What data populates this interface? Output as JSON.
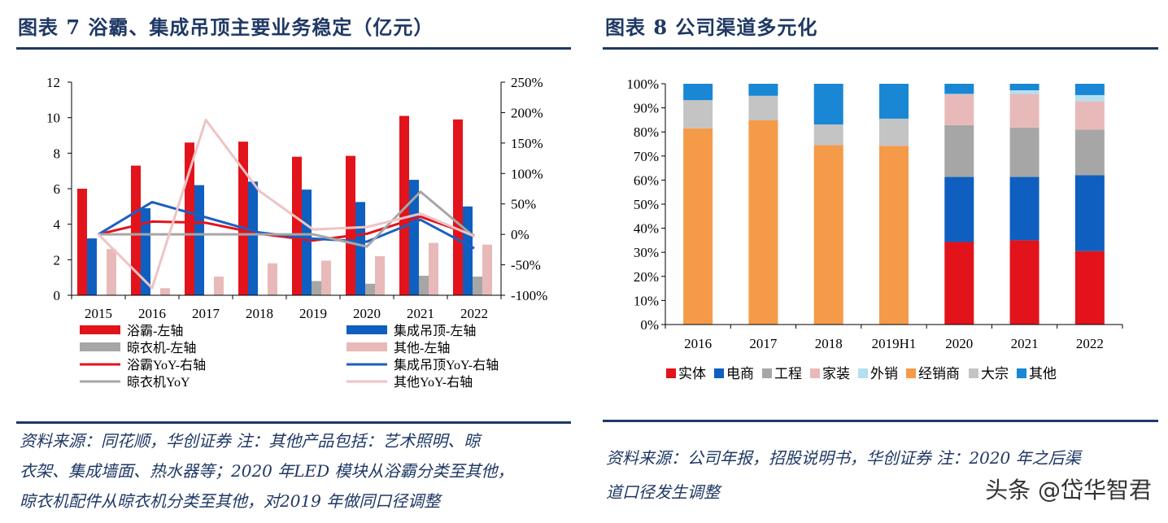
{
  "left": {
    "title": "图表 7   浴霸、集成吊顶主要业务稳定（亿元）",
    "source_lines": [
      "资料来源：同花顺，华创证券 注：其他产品包括：艺术照明、晾",
      "衣架、集成墙面、热水器等；2020 年LED 模块从浴霸分类至其他，",
      "晾衣机配件从晾衣机分类至其他，对2019 年做同口径调整"
    ]
  },
  "right": {
    "title": "图表 8   公司渠道多元化",
    "source_lines": [
      "资料来源：公司年报，招股说明书，华创证券 注：2020 年之后渠",
      "道口径发生调整"
    ]
  },
  "watermark": "头条 @岱华智君",
  "colors": {
    "title": "#1f3864",
    "red": "#e3131b",
    "blue": "#0e5fc0",
    "gray": "#a6a6a6",
    "pink": "#e8b9b9",
    "lightblue": "#b3dff0",
    "orange": "#f59a48",
    "lightgray": "#c4c4c4",
    "sky": "#1987d4",
    "blueLine": "#1c5fc0",
    "pinkLine": "#efc3c3"
  },
  "chart_data": [
    {
      "type": "bar",
      "categories": [
        "2015",
        "2016",
        "2017",
        "2018",
        "2019",
        "2020",
        "2021",
        "2022"
      ],
      "y_left": {
        "ylim": [
          0,
          12
        ],
        "ticks": [
          "0",
          "2",
          "4",
          "6",
          "8",
          "10",
          "12"
        ]
      },
      "y_right": {
        "ylim": [
          -100,
          250
        ],
        "ticks": [
          "-100%",
          "-50%",
          "0%",
          "50%",
          "100%",
          "150%",
          "200%",
          "250%"
        ]
      },
      "series": [
        {
          "name": "浴霸-左轴",
          "kind": "bar",
          "axis": "left",
          "color": "#e3131b",
          "values": [
            6.0,
            7.3,
            8.6,
            8.65,
            7.8,
            7.85,
            10.1,
            9.9
          ]
        },
        {
          "name": "集成吊顶-左轴",
          "kind": "bar",
          "axis": "left",
          "color": "#0e5fc0",
          "values": [
            3.2,
            4.9,
            6.2,
            6.4,
            5.95,
            5.25,
            6.5,
            5.0
          ]
        },
        {
          "name": "晾衣机-左轴",
          "kind": "bar",
          "axis": "left",
          "color": "#a6a6a6",
          "values": [
            0,
            0,
            0,
            0,
            0.8,
            0.65,
            1.1,
            1.05
          ]
        },
        {
          "name": "其他-左轴",
          "kind": "bar",
          "axis": "left",
          "color": "#e8b9b9",
          "values": [
            2.6,
            0.4,
            1.05,
            1.8,
            1.95,
            2.2,
            2.95,
            2.85
          ]
        },
        {
          "name": "浴霸YoY-右轴",
          "kind": "line",
          "axis": "right",
          "color": "#e3131b",
          "values": [
            0,
            21,
            19,
            1,
            -10,
            1,
            29,
            -2
          ]
        },
        {
          "name": "集成吊顶YoY-右轴",
          "kind": "line",
          "axis": "right",
          "color": "#1c5fc0",
          "values": [
            0,
            53,
            28,
            3,
            -7,
            -12,
            24,
            -23
          ]
        },
        {
          "name": "晾衣机YoY",
          "kind": "line",
          "axis": "right",
          "color": "#a6a6a6",
          "values": [
            0,
            0,
            0,
            0,
            0,
            -20,
            70,
            -4
          ]
        },
        {
          "name": "其他YoY-右轴",
          "kind": "line",
          "axis": "right",
          "color": "#efc3c3",
          "values": [
            0,
            -88,
            188,
            71,
            8,
            12,
            34,
            -3
          ]
        }
      ],
      "legend_rows": [
        [
          "浴霸-左轴",
          "集成吊顶-左轴"
        ],
        [
          "晾衣机-左轴",
          "其他-左轴"
        ],
        [
          "浴霸YoY-右轴",
          "集成吊顶YoY-右轴"
        ],
        [
          "晾衣机YoY",
          "其他YoY-右轴"
        ]
      ]
    },
    {
      "type": "bar",
      "stacked": true,
      "categories": [
        "2016",
        "2017",
        "2018",
        "2019H1",
        "2020",
        "2021",
        "2022"
      ],
      "ylim": [
        0,
        100
      ],
      "y_ticks": [
        "0%",
        "10%",
        "20%",
        "30%",
        "40%",
        "50%",
        "60%",
        "70%",
        "80%",
        "90%",
        "100%"
      ],
      "series": [
        {
          "name": "实体",
          "color": "#e3131b",
          "values": [
            0,
            0,
            0,
            0,
            34.3,
            35,
            30.5
          ]
        },
        {
          "name": "电商",
          "color": "#0e5fc0",
          "values": [
            0,
            0,
            0,
            0,
            27,
            26.3,
            31.5
          ]
        },
        {
          "name": "工程",
          "color": "#a6a6a6",
          "values": [
            0,
            0,
            0,
            0,
            21.5,
            20.5,
            19
          ]
        },
        {
          "name": "家装",
          "color": "#e8b9b9",
          "values": [
            0,
            0,
            0,
            0,
            12.8,
            14,
            11.8
          ]
        },
        {
          "name": "外销",
          "color": "#b3dff0",
          "values": [
            0,
            0,
            0,
            0,
            0.2,
            1.5,
            2.5
          ]
        },
        {
          "name": "经销商",
          "color": "#f59a48",
          "values": [
            81.5,
            84.8,
            74.5,
            74.2,
            0,
            0,
            0
          ]
        },
        {
          "name": "大宗",
          "color": "#c4c4c4",
          "values": [
            11.7,
            10.2,
            8.6,
            11.3,
            0,
            0,
            0
          ]
        },
        {
          "name": "其他",
          "color": "#1987d4",
          "values": [
            6.8,
            5,
            16.9,
            14.5,
            4.2,
            2.7,
            4.7
          ]
        }
      ]
    }
  ]
}
